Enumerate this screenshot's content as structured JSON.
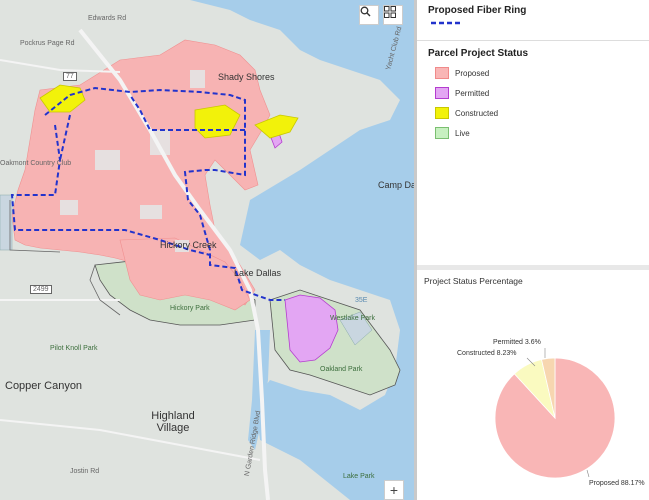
{
  "map": {
    "labels": {
      "edwards_rd": "Edwards Rd",
      "pockrus_page_rd": "Pockrus Page Rd",
      "shady_shores": "Shady Shores",
      "copper_canyon": "Copper Canyon",
      "highland_village": "Highland Village",
      "lake_dallas": "Lake Dallas",
      "hickory_creek": "Hickory Creek",
      "camp_dal": "Camp Dal",
      "pilot_knoll_park": "Pilot Knoll Park",
      "oakland_park": "Oakland Park",
      "hickory_park": "Hickory Park",
      "westlake_park": "Westlake Park",
      "lake_park": "Lake Park",
      "oakmont_country_club": "Oakmont Country Club",
      "jostin_rd": "Jostin Rd",
      "shield_77": "77",
      "shield_2499": "2499",
      "shield_35e": "35E",
      "yacht_club_rd": "Yacht Club Rd",
      "n_garden_ridge_blvd": "N Garden Ridge Blvd",
      "lake_dallas_rd": "Lake Dallas"
    },
    "buttons": {
      "search_icon": "search-icon",
      "basemap_icon": "basemap-gallery-icon",
      "zoom_in": "+"
    }
  },
  "legend_fiber": {
    "title": "Proposed Fiber Ring",
    "line_color": "#2233cc"
  },
  "legend_parcel": {
    "title": "Parcel Project Status",
    "items": [
      {
        "label": "Proposed",
        "color": "#f9b6b6",
        "border": "#f08a8a"
      },
      {
        "label": "Permitted",
        "color": "#e3a6f3",
        "border": "#b43ccf"
      },
      {
        "label": "Constructed",
        "color": "#f2f20a",
        "border": "#c8c800"
      },
      {
        "label": "Live",
        "color": "#c7f0c0",
        "border": "#7bbf70"
      }
    ]
  },
  "chart_panel": {
    "title": "Project Status Percentage"
  },
  "chart_data": {
    "type": "pie",
    "title": "Project Status Percentage",
    "slices": [
      {
        "label": "Proposed",
        "value": 88.17,
        "display": "Proposed 88.17%",
        "color": "#f9b6b6"
      },
      {
        "label": "Constructed",
        "value": 8.23,
        "display": "Constructed 8.23%",
        "color": "#fafac0"
      },
      {
        "label": "Permitted",
        "value": 3.6,
        "display": "Permitted 3.6%",
        "color": "#f7d6b0"
      }
    ]
  }
}
